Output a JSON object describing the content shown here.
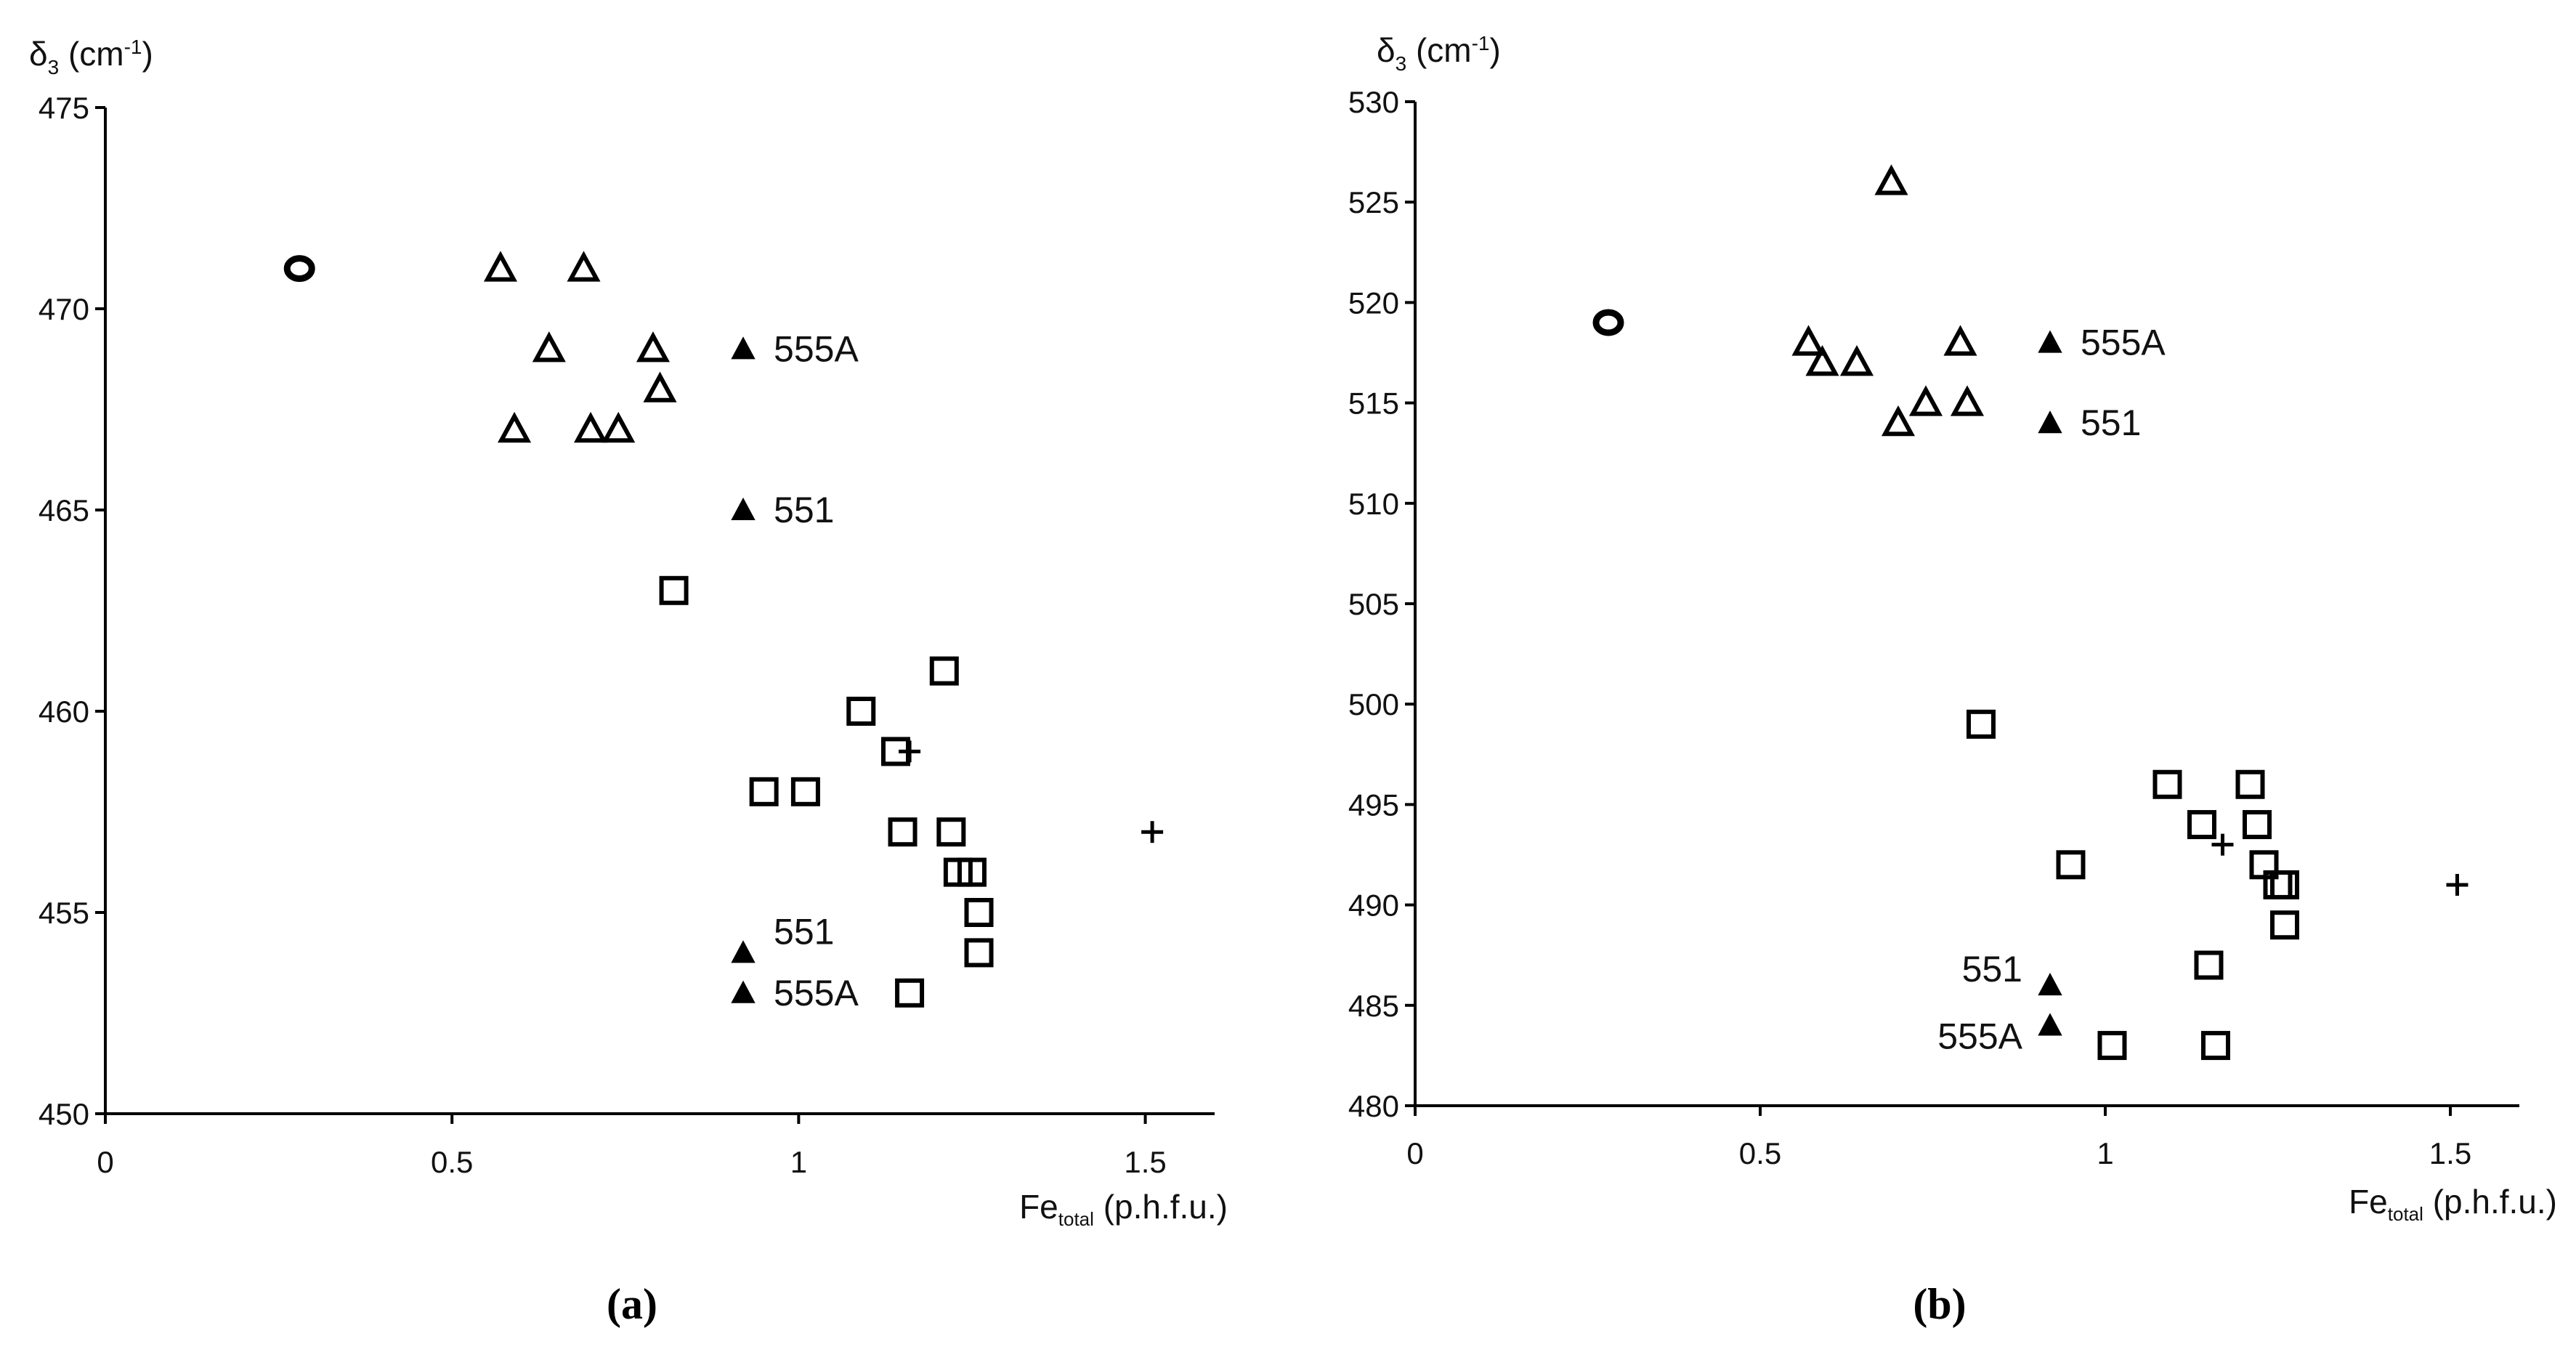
{
  "figure": {
    "panel_labels": [
      "(a)",
      "(b)"
    ]
  },
  "chart_data": [
    {
      "type": "scatter",
      "panel": "(a)",
      "ylabel": {
        "symbol": "δ",
        "sub": "3",
        "unit": "(cm",
        "sup": "-1",
        "close": ")"
      },
      "xlabel": {
        "main": "Fe",
        "sub": "total",
        "unit": "(p.h.f.u.)"
      },
      "xlim": [
        0,
        1.6
      ],
      "ylim": [
        450,
        475
      ],
      "x_ticks": [
        0,
        0.5,
        1,
        1.5
      ],
      "x_tick_labels": [
        "0",
        "0.5",
        "1",
        "1.5"
      ],
      "y_ticks": [
        450,
        455,
        460,
        465,
        470,
        475
      ],
      "y_tick_labels": [
        "450",
        "455",
        "460",
        "465",
        "470",
        "475"
      ],
      "series": [
        {
          "name": "circle",
          "marker": "circle",
          "points": [
            [
              0.28,
              471
            ]
          ]
        },
        {
          "name": "open-triangle",
          "marker": "triangle-open",
          "points": [
            [
              0.57,
              471
            ],
            [
              0.69,
              471
            ],
            [
              0.64,
              469
            ],
            [
              0.79,
              469
            ],
            [
              0.8,
              468
            ],
            [
              0.59,
              467
            ],
            [
              0.7,
              467
            ],
            [
              0.74,
              467
            ]
          ]
        },
        {
          "name": "filled-triangle",
          "marker": "triangle-filled",
          "points": [
            [
              0.92,
              469
            ],
            [
              0.92,
              465
            ],
            [
              0.92,
              454
            ],
            [
              0.92,
              453
            ]
          ]
        },
        {
          "name": "square",
          "marker": "square-open",
          "points": [
            [
              0.82,
              463
            ],
            [
              1.21,
              461
            ],
            [
              1.09,
              460
            ],
            [
              1.14,
              459
            ],
            [
              0.95,
              458
            ],
            [
              1.01,
              458
            ],
            [
              1.15,
              457
            ],
            [
              1.22,
              457
            ],
            [
              1.23,
              456
            ],
            [
              1.25,
              456
            ],
            [
              1.26,
              455
            ],
            [
              1.26,
              454
            ],
            [
              1.16,
              453
            ]
          ]
        },
        {
          "name": "plus",
          "marker": "plus",
          "points": [
            [
              1.16,
              459
            ],
            [
              1.51,
              457
            ]
          ]
        }
      ],
      "annotations": [
        {
          "text": "555A",
          "x": 0.92,
          "y": 469,
          "side": "right"
        },
        {
          "text": "551",
          "x": 0.92,
          "y": 465,
          "side": "right"
        },
        {
          "text": "551",
          "x": 0.92,
          "y": 454,
          "side": "right-up"
        },
        {
          "text": "555A",
          "x": 0.92,
          "y": 453,
          "side": "right"
        }
      ]
    },
    {
      "type": "scatter",
      "panel": "(b)",
      "ylabel": {
        "symbol": "δ",
        "sub": "3",
        "unit": "(cm",
        "sup": "-1",
        "close": ")"
      },
      "xlabel": {
        "main": "Fe",
        "sub": "total",
        "unit": "(p.h.f.u.)"
      },
      "xlim": [
        0,
        1.6
      ],
      "ylim": [
        480,
        530
      ],
      "x_ticks": [
        0,
        0.5,
        1,
        1.5
      ],
      "x_tick_labels": [
        "0",
        "0.5",
        "1",
        "1.5"
      ],
      "y_ticks": [
        480,
        485,
        490,
        495,
        500,
        505,
        510,
        515,
        520,
        525,
        530
      ],
      "y_tick_labels": [
        "480",
        "485",
        "490",
        "495",
        "500",
        "505",
        "510",
        "515",
        "520",
        "525",
        "530"
      ],
      "series": [
        {
          "name": "circle",
          "marker": "circle",
          "points": [
            [
              0.28,
              519
            ]
          ]
        },
        {
          "name": "open-triangle",
          "marker": "triangle-open",
          "points": [
            [
              0.69,
              526
            ],
            [
              0.57,
              518
            ],
            [
              0.59,
              517
            ],
            [
              0.64,
              517
            ],
            [
              0.79,
              518
            ],
            [
              0.74,
              515
            ],
            [
              0.8,
              515
            ],
            [
              0.7,
              514
            ]
          ]
        },
        {
          "name": "filled-triangle",
          "marker": "triangle-filled",
          "points": [
            [
              0.92,
              518
            ],
            [
              0.92,
              514
            ],
            [
              0.92,
              486
            ],
            [
              0.92,
              484
            ]
          ]
        },
        {
          "name": "square",
          "marker": "square-open",
          "points": [
            [
              0.82,
              499
            ],
            [
              1.09,
              496
            ],
            [
              1.21,
              496
            ],
            [
              1.14,
              494
            ],
            [
              1.22,
              494
            ],
            [
              0.95,
              492
            ],
            [
              1.23,
              492
            ],
            [
              1.25,
              491
            ],
            [
              1.26,
              491
            ],
            [
              1.26,
              489
            ],
            [
              1.15,
              487
            ],
            [
              1.01,
              483
            ],
            [
              1.16,
              483
            ]
          ]
        },
        {
          "name": "plus",
          "marker": "plus",
          "points": [
            [
              1.17,
              493
            ],
            [
              1.51,
              491
            ]
          ]
        }
      ],
      "annotations": [
        {
          "text": "555A",
          "x": 0.92,
          "y": 518,
          "side": "right"
        },
        {
          "text": "551",
          "x": 0.92,
          "y": 514,
          "side": "right"
        },
        {
          "text": "551",
          "x": 0.92,
          "y": 486,
          "side": "left-up"
        },
        {
          "text": "555A",
          "x": 0.92,
          "y": 484,
          "side": "left"
        }
      ]
    }
  ]
}
